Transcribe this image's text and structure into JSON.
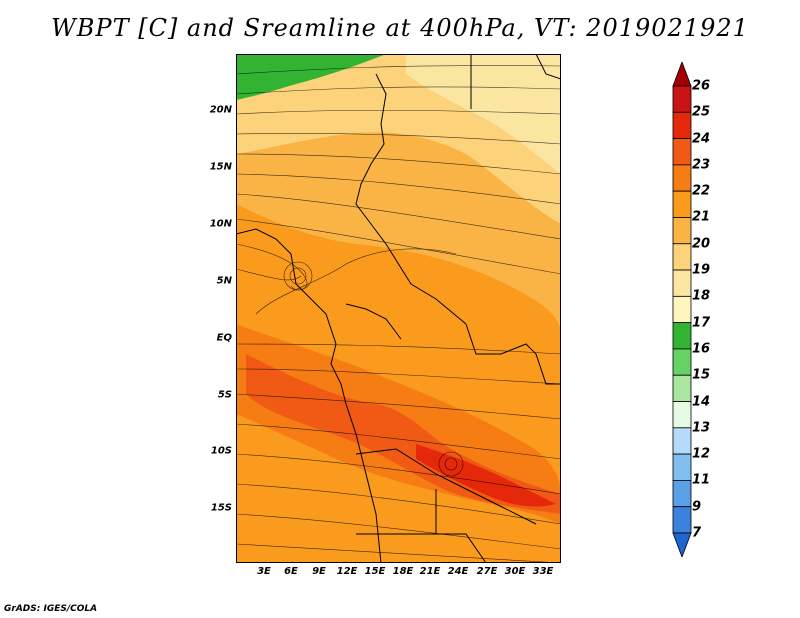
{
  "title": "WBPT [C] and Sreamline at 400hPa, VT: 2019021921",
  "credit": "GrADS: IGES/COLA",
  "lat_labels": [
    "20N",
    "15N",
    "10N",
    "5N",
    "EQ",
    "5S",
    "10S",
    "15S"
  ],
  "lon_labels": [
    "3E",
    "6E",
    "9E",
    "12E",
    "15E",
    "18E",
    "21E",
    "24E",
    "27E",
    "30E",
    "33E"
  ],
  "colorbar": {
    "labels": [
      "26",
      "25",
      "24",
      "23",
      "22",
      "21",
      "20",
      "19",
      "18",
      "17",
      "16",
      "15",
      "14",
      "13",
      "12",
      "11",
      "9",
      "7"
    ],
    "colors": [
      "#a50000",
      "#c81414",
      "#e6280a",
      "#f05a14",
      "#f57d14",
      "#fa9b1e",
      "#fab446",
      "#fcd27a",
      "#fae6a0",
      "#fff5be",
      "#32b432",
      "#64d264",
      "#aae6a0",
      "#e6fae6",
      "#b4dcfa",
      "#82bef0",
      "#5aa0e6",
      "#3c82dc",
      "#1e64d2"
    ]
  },
  "map": {
    "field": "Wet-bulb potential temperature",
    "level": "400hPa",
    "valid_time": "2019021921"
  }
}
